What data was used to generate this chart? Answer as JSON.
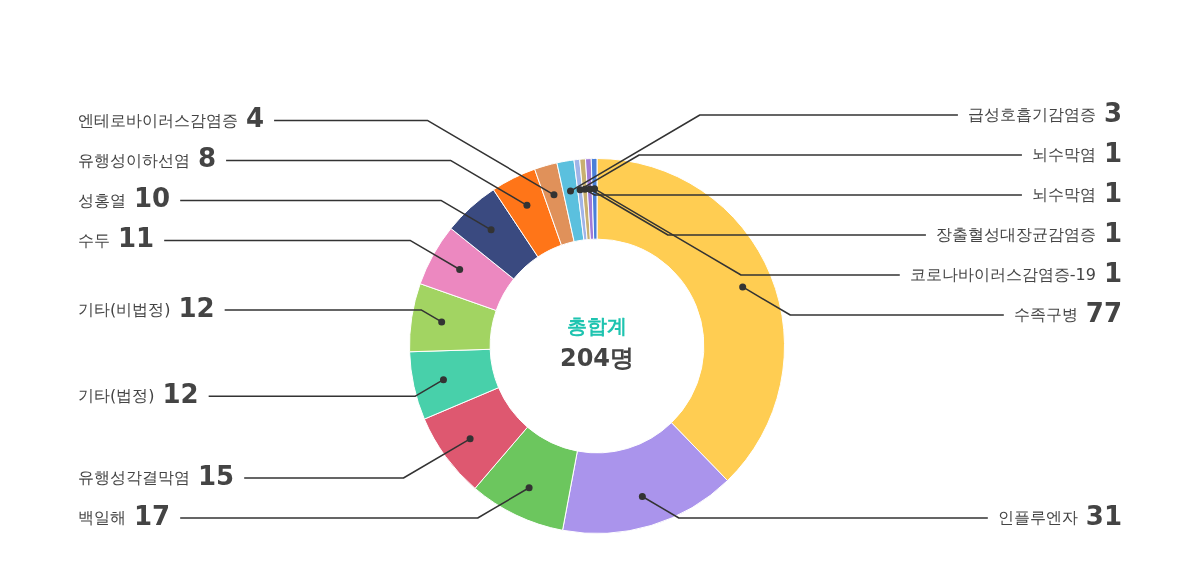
{
  "chart_data": {
    "type": "donut",
    "title": "총합계",
    "subtitle": "204명",
    "categories": [
      "수족구병",
      "인플루엔자",
      "백일해",
      "유행성각결막염",
      "기타(법정)",
      "기타(비법정)",
      "수두",
      "성홍열",
      "유행성이하선염",
      "엔테로바이러스감염증",
      "급성호흡기감염증",
      "뇌수막염",
      "뇌수막염",
      "장출혈성대장균감염증",
      "코로나바이러스감염증-19"
    ],
    "values": [
      77,
      31,
      17,
      15,
      12,
      12,
      11,
      10,
      8,
      4,
      3,
      1,
      1,
      1,
      1
    ],
    "colors": [
      "#ffcd52",
      "#aa94ec",
      "#6cc65e",
      "#de5870",
      "#48d0aa",
      "#a2d462",
      "#ec88c0",
      "#3a4a80",
      "#ff7518",
      "#e0915a",
      "#5bc0de",
      "#a0b4e8",
      "#c8b070",
      "#a07ad8",
      "#4a7fd8"
    ],
    "data_labels": true
  }
}
